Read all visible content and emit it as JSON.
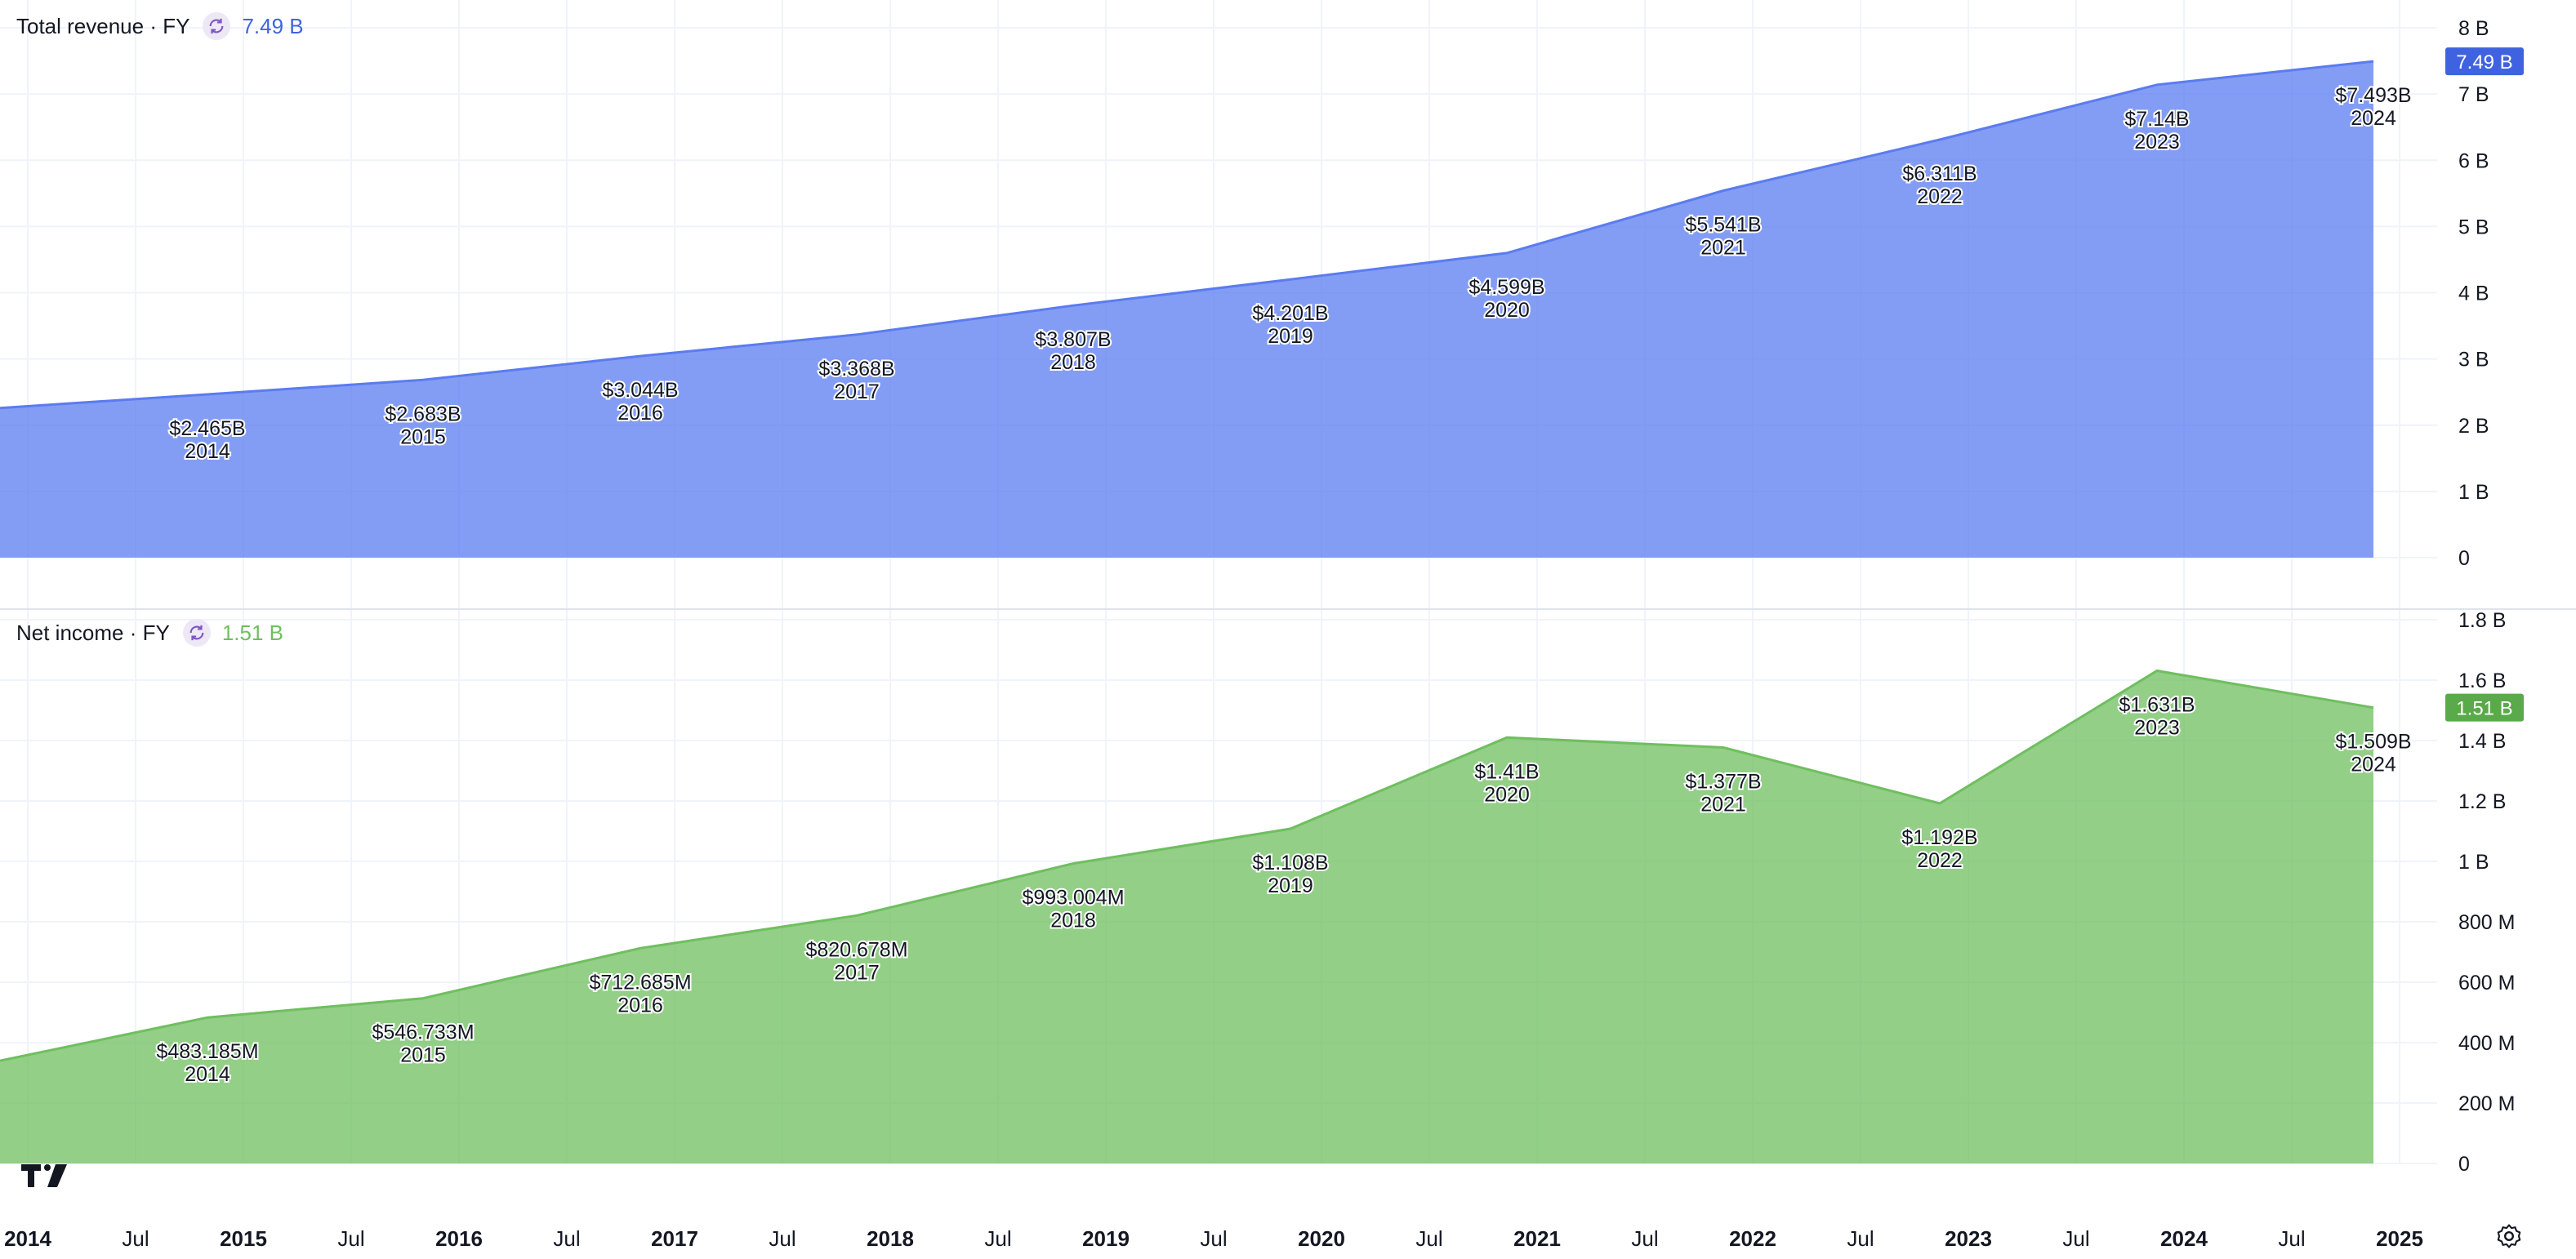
{
  "panes": [
    {
      "title": "Total revenue · FY",
      "last_value": "7.49 B",
      "badge": "7.49 B",
      "color": "#5b7cf0"
    },
    {
      "title": "Net income · FY",
      "last_value": "1.51 B",
      "badge": "1.51 B",
      "color": "#6fbf5f"
    }
  ],
  "icons": {
    "refresh": "refresh-icon",
    "logo": "tradingview-logo-icon",
    "settings": "gear-icon"
  },
  "chart_data": [
    {
      "type": "area",
      "x": [
        "2014",
        "2015",
        "2016",
        "2017",
        "2018",
        "2019",
        "2020",
        "2021",
        "2022",
        "2023",
        "2024"
      ],
      "values": [
        2.465,
        2.683,
        3.044,
        3.368,
        3.807,
        4.201,
        4.599,
        5.541,
        6.311,
        7.14,
        7.493
      ],
      "left_edge_value": 2.26,
      "labels": [
        "$2.465B",
        "$2.683B",
        "$3.044B",
        "$3.368B",
        "$3.807B",
        "$4.201B",
        "$4.599B",
        "$5.541B",
        "$6.311B",
        "$7.14B",
        "$7.493B"
      ],
      "ylim": [
        0,
        8
      ],
      "yticks": [
        0,
        1,
        2,
        3,
        4,
        5,
        6,
        7,
        8
      ],
      "ytick_labels": [
        "0",
        "1 B",
        "2 B",
        "3 B",
        "4 B",
        "5 B",
        "6 B",
        "7 B",
        "8 B"
      ],
      "grid": true
    },
    {
      "type": "area",
      "x": [
        "2014",
        "2015",
        "2016",
        "2017",
        "2018",
        "2019",
        "2020",
        "2021",
        "2022",
        "2023",
        "2024"
      ],
      "values": [
        0.483185,
        0.546733,
        0.712685,
        0.820678,
        0.993004,
        1.108,
        1.41,
        1.377,
        1.192,
        1.631,
        1.509
      ],
      "left_edge_value": 0.34,
      "labels": [
        "$483.185M",
        "$546.733M",
        "$712.685M",
        "$820.678M",
        "$993.004M",
        "$1.108B",
        "$1.41B",
        "$1.377B",
        "$1.192B",
        "$1.631B",
        "$1.509B"
      ],
      "ylim": [
        0,
        1.8
      ],
      "yticks": [
        0,
        0.2,
        0.4,
        0.6,
        0.8,
        1.0,
        1.2,
        1.4,
        1.6,
        1.8
      ],
      "ytick_labels": [
        "0",
        "200 M",
        "400 M",
        "600 M",
        "800 M",
        "1 B",
        "1.2 B",
        "1.4 B",
        "1.6 B",
        "1.8 B"
      ],
      "grid": true
    }
  ],
  "x_axis": {
    "labels": [
      "2014",
      "Jul",
      "2015",
      "Jul",
      "2016",
      "Jul",
      "2017",
      "Jul",
      "2018",
      "Jul",
      "2019",
      "Jul",
      "2020",
      "Jul",
      "2021",
      "Jul",
      "2022",
      "Jul",
      "2023",
      "Jul",
      "2024",
      "Jul",
      "2025"
    ],
    "bold": [
      true,
      false,
      true,
      false,
      true,
      false,
      true,
      false,
      true,
      false,
      true,
      false,
      true,
      false,
      true,
      false,
      true,
      false,
      true,
      false,
      true,
      false,
      true
    ]
  }
}
